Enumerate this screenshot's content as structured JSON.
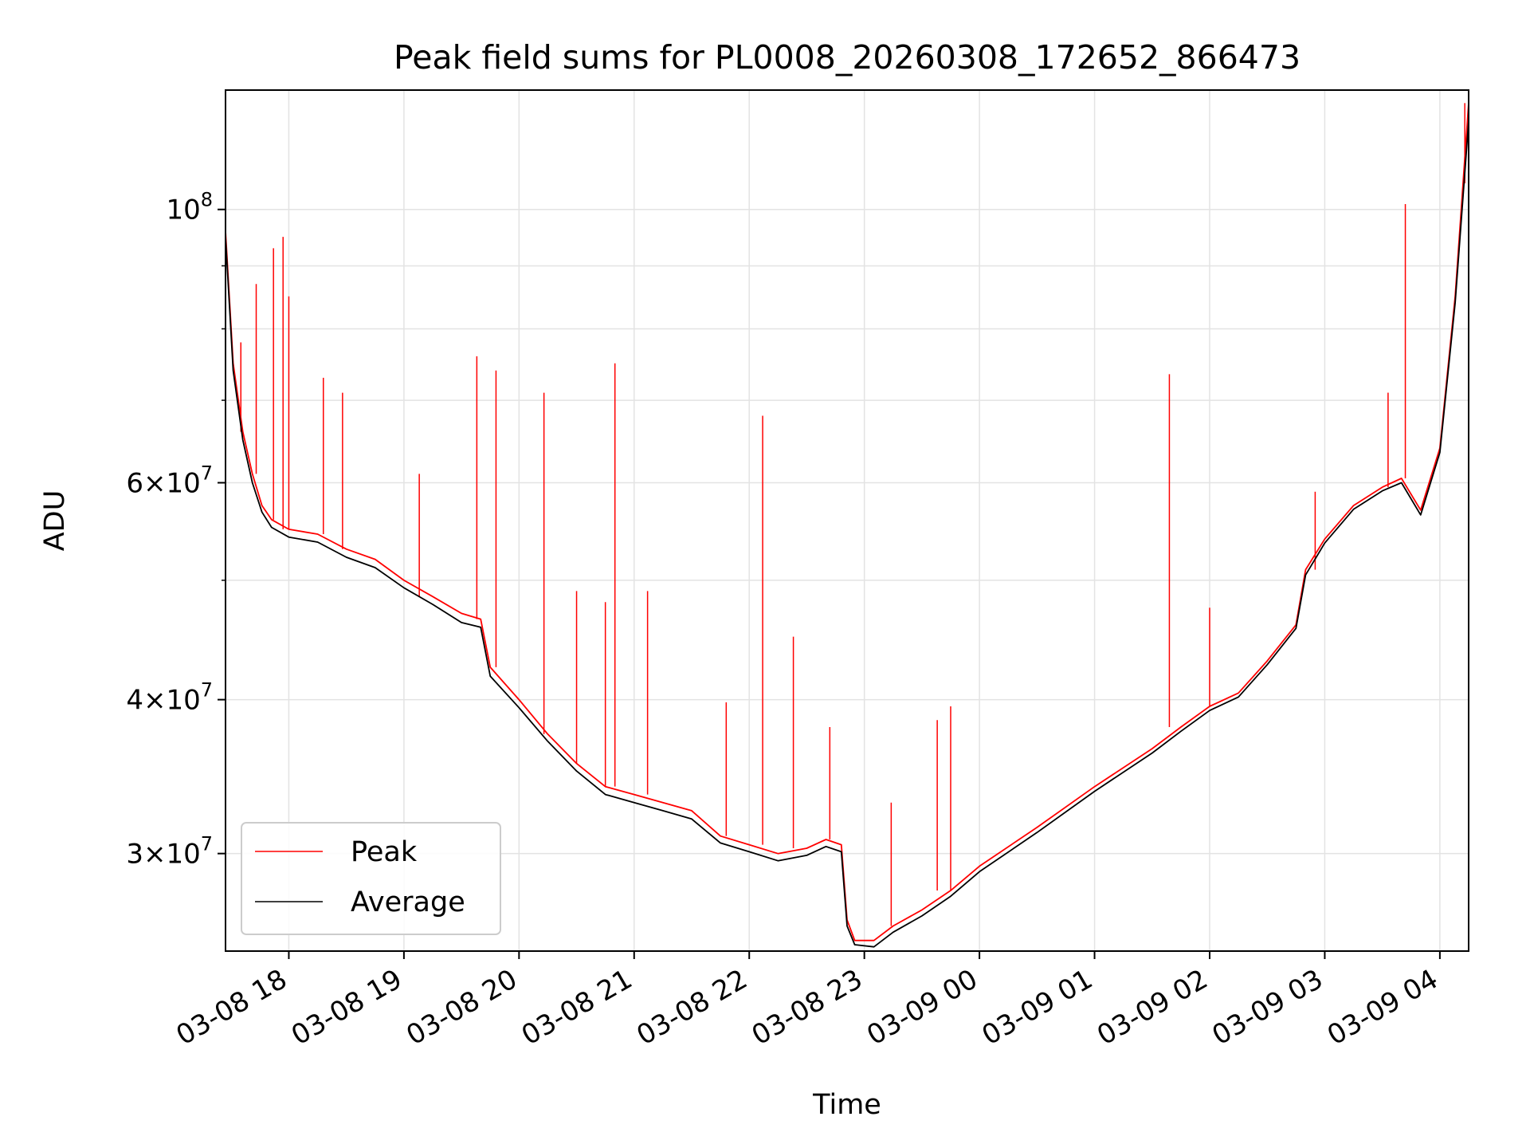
{
  "chart_data": {
    "type": "line",
    "title": "Peak field sums for PL0008_20260308_172652_866473",
    "xlabel": "Time",
    "ylabel": "ADU",
    "y_scale": "log",
    "xlim": [
      "2026-03-08 17:27",
      "2026-03-09 04:15"
    ],
    "ylim": [
      25000000.0,
      125000000.0
    ],
    "grid": true,
    "legend_position": "lower-left",
    "x_ticks": [
      {
        "t": "2026-03-08 18:00",
        "label": "03-08 18"
      },
      {
        "t": "2026-03-08 19:00",
        "label": "03-08 19"
      },
      {
        "t": "2026-03-08 20:00",
        "label": "03-08 20"
      },
      {
        "t": "2026-03-08 21:00",
        "label": "03-08 21"
      },
      {
        "t": "2026-03-08 22:00",
        "label": "03-08 22"
      },
      {
        "t": "2026-03-08 23:00",
        "label": "03-08 23"
      },
      {
        "t": "2026-03-09 00:00",
        "label": "03-09 00"
      },
      {
        "t": "2026-03-09 01:00",
        "label": "03-09 01"
      },
      {
        "t": "2026-03-09 02:00",
        "label": "03-09 02"
      },
      {
        "t": "2026-03-09 03:00",
        "label": "03-09 03"
      },
      {
        "t": "2026-03-09 04:00",
        "label": "03-09 04"
      }
    ],
    "y_major_ticks": [
      {
        "v": 30000000,
        "mant": "3",
        "exp": "7"
      },
      {
        "v": 40000000,
        "mant": "4",
        "exp": "7"
      },
      {
        "v": 60000000,
        "mant": "6",
        "exp": "7"
      },
      {
        "v": 100000000,
        "mant": "",
        "exp": "8"
      }
    ],
    "y_minor_grid": [
      50000000,
      70000000,
      80000000,
      90000000
    ],
    "series": [
      {
        "name": "Peak",
        "color": "#ff0000",
        "points": [
          [
            "2026-03-08 17:27",
            96000000
          ],
          [
            "2026-03-08 17:31",
            75000000
          ],
          [
            "2026-03-08 17:36",
            66000000
          ],
          [
            "2026-03-08 17:41",
            61000000
          ],
          [
            "2026-03-08 17:46",
            57500000
          ],
          [
            "2026-03-08 17:51",
            56000000
          ],
          [
            "2026-03-08 18:00",
            55000000
          ],
          [
            "2026-03-08 18:15",
            54500000
          ],
          [
            "2026-03-08 18:30",
            53000000
          ],
          [
            "2026-03-08 18:45",
            52000000
          ],
          [
            "2026-03-08 19:00",
            50000000
          ],
          [
            "2026-03-08 19:15",
            48500000
          ],
          [
            "2026-03-08 19:30",
            47000000
          ],
          [
            "2026-03-08 19:40",
            46500000
          ],
          [
            "2026-03-08 19:45",
            42500000
          ],
          [
            "2026-03-08 20:00",
            40000000
          ],
          [
            "2026-03-08 20:15",
            37500000
          ],
          [
            "2026-03-08 20:30",
            35500000
          ],
          [
            "2026-03-08 20:45",
            34000000
          ],
          [
            "2026-03-08 21:00",
            33500000
          ],
          [
            "2026-03-08 21:15",
            33000000
          ],
          [
            "2026-03-08 21:30",
            32500000
          ],
          [
            "2026-03-08 21:45",
            31000000
          ],
          [
            "2026-03-08 22:00",
            30500000
          ],
          [
            "2026-03-08 22:15",
            30000000
          ],
          [
            "2026-03-08 22:30",
            30300000
          ],
          [
            "2026-03-08 22:40",
            30800000
          ],
          [
            "2026-03-08 22:48",
            30500000
          ],
          [
            "2026-03-08 22:51",
            26500000
          ],
          [
            "2026-03-08 22:55",
            25500000
          ],
          [
            "2026-03-08 23:05",
            25500000
          ],
          [
            "2026-03-08 23:15",
            26200000
          ],
          [
            "2026-03-08 23:30",
            27000000
          ],
          [
            "2026-03-08 23:45",
            28000000
          ],
          [
            "2026-03-09 00:00",
            29300000
          ],
          [
            "2026-03-09 00:30",
            31500000
          ],
          [
            "2026-03-09 01:00",
            34000000
          ],
          [
            "2026-03-09 01:30",
            36500000
          ],
          [
            "2026-03-09 01:45",
            38000000
          ],
          [
            "2026-03-09 02:00",
            39500000
          ],
          [
            "2026-03-09 02:15",
            40500000
          ],
          [
            "2026-03-09 02:30",
            43000000
          ],
          [
            "2026-03-09 02:45",
            46000000
          ],
          [
            "2026-03-09 02:50",
            51000000
          ],
          [
            "2026-03-09 03:00",
            54000000
          ],
          [
            "2026-03-09 03:15",
            57500000
          ],
          [
            "2026-03-09 03:30",
            59500000
          ],
          [
            "2026-03-09 03:40",
            60500000
          ],
          [
            "2026-03-09 03:50",
            57000000
          ],
          [
            "2026-03-09 04:00",
            64000000
          ],
          [
            "2026-03-09 04:08",
            85000000
          ],
          [
            "2026-03-09 04:15",
            122000000
          ]
        ],
        "spikes": [
          [
            "2026-03-08 17:35",
            78000000
          ],
          [
            "2026-03-08 17:43",
            87000000
          ],
          [
            "2026-03-08 17:52",
            93000000
          ],
          [
            "2026-03-08 17:57",
            95000000
          ],
          [
            "2026-03-08 18:00",
            85000000
          ],
          [
            "2026-03-08 18:18",
            73000000
          ],
          [
            "2026-03-08 18:28",
            71000000
          ],
          [
            "2026-03-08 19:08",
            61000000
          ],
          [
            "2026-03-08 19:38",
            76000000
          ],
          [
            "2026-03-08 19:48",
            74000000
          ],
          [
            "2026-03-08 20:13",
            71000000
          ],
          [
            "2026-03-08 20:30",
            49000000
          ],
          [
            "2026-03-08 20:45",
            48000000
          ],
          [
            "2026-03-08 20:50",
            75000000
          ],
          [
            "2026-03-08 21:07",
            49000000
          ],
          [
            "2026-03-08 21:48",
            39800000
          ],
          [
            "2026-03-08 22:07",
            68000000
          ],
          [
            "2026-03-08 22:23",
            45000000
          ],
          [
            "2026-03-08 22:42",
            38000000
          ],
          [
            "2026-03-08 23:14",
            33000000
          ],
          [
            "2026-03-08 23:38",
            38500000
          ],
          [
            "2026-03-08 23:45",
            39500000
          ],
          [
            "2026-03-09 01:39",
            73500000
          ],
          [
            "2026-03-09 02:00",
            47500000
          ],
          [
            "2026-03-09 02:55",
            59000000
          ],
          [
            "2026-03-09 03:33",
            71000000
          ],
          [
            "2026-03-09 03:42",
            101000000
          ],
          [
            "2026-03-09 04:13",
            105000000
          ]
        ]
      },
      {
        "name": "Average",
        "color": "#000000",
        "points": [
          [
            "2026-03-08 17:27",
            95000000
          ],
          [
            "2026-03-08 17:31",
            74000000
          ],
          [
            "2026-03-08 17:36",
            65000000
          ],
          [
            "2026-03-08 17:41",
            60000000
          ],
          [
            "2026-03-08 17:46",
            56800000
          ],
          [
            "2026-03-08 17:51",
            55200000
          ],
          [
            "2026-03-08 18:00",
            54200000
          ],
          [
            "2026-03-08 18:15",
            53700000
          ],
          [
            "2026-03-08 18:30",
            52200000
          ],
          [
            "2026-03-08 18:45",
            51200000
          ],
          [
            "2026-03-08 19:00",
            49300000
          ],
          [
            "2026-03-08 19:15",
            47800000
          ],
          [
            "2026-03-08 19:30",
            46200000
          ],
          [
            "2026-03-08 19:40",
            45800000
          ],
          [
            "2026-03-08 19:45",
            41800000
          ],
          [
            "2026-03-08 20:00",
            39400000
          ],
          [
            "2026-03-08 20:15",
            37000000
          ],
          [
            "2026-03-08 20:30",
            35000000
          ],
          [
            "2026-03-08 20:45",
            33500000
          ],
          [
            "2026-03-08 21:00",
            33000000
          ],
          [
            "2026-03-08 21:15",
            32500000
          ],
          [
            "2026-03-08 21:30",
            32000000
          ],
          [
            "2026-03-08 21:45",
            30600000
          ],
          [
            "2026-03-08 22:00",
            30100000
          ],
          [
            "2026-03-08 22:15",
            29600000
          ],
          [
            "2026-03-08 22:30",
            29900000
          ],
          [
            "2026-03-08 22:40",
            30400000
          ],
          [
            "2026-03-08 22:48",
            30100000
          ],
          [
            "2026-03-08 22:51",
            26200000
          ],
          [
            "2026-03-08 22:55",
            25300000
          ],
          [
            "2026-03-08 23:05",
            25200000
          ],
          [
            "2026-03-08 23:15",
            25900000
          ],
          [
            "2026-03-08 23:30",
            26700000
          ],
          [
            "2026-03-08 23:45",
            27700000
          ],
          [
            "2026-03-09 00:00",
            29000000
          ],
          [
            "2026-03-09 00:30",
            31200000
          ],
          [
            "2026-03-09 01:00",
            33700000
          ],
          [
            "2026-03-09 01:30",
            36200000
          ],
          [
            "2026-03-09 01:45",
            37700000
          ],
          [
            "2026-03-09 02:00",
            39200000
          ],
          [
            "2026-03-09 02:15",
            40200000
          ],
          [
            "2026-03-09 02:30",
            42700000
          ],
          [
            "2026-03-09 02:45",
            45700000
          ],
          [
            "2026-03-09 02:50",
            50500000
          ],
          [
            "2026-03-09 03:00",
            53600000
          ],
          [
            "2026-03-09 03:15",
            57100000
          ],
          [
            "2026-03-09 03:30",
            59100000
          ],
          [
            "2026-03-09 03:40",
            60000000
          ],
          [
            "2026-03-09 03:50",
            56500000
          ],
          [
            "2026-03-09 04:00",
            63500000
          ],
          [
            "2026-03-09 04:08",
            84000000
          ],
          [
            "2026-03-09 04:15",
            118000000
          ]
        ]
      }
    ]
  }
}
